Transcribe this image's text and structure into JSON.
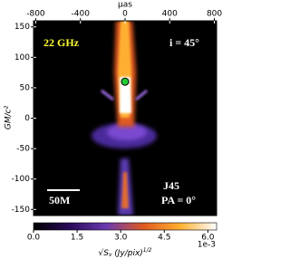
{
  "chart_data": {
    "type": "image",
    "x_label": "μas",
    "y_label": "GM/c²",
    "xlim": [
      -820,
      820
    ],
    "xticks": [
      -800,
      -400,
      0,
      400,
      800
    ],
    "ylim": [
      -160,
      160
    ],
    "yticks": [
      150,
      100,
      50,
      0,
      -50,
      -100,
      -150
    ],
    "annotations": [
      "22 GHz",
      "i = 45°",
      "J45",
      "PA = 0°",
      "50M"
    ],
    "marker": {
      "x": 0,
      "y": 60,
      "color": "#22cc33"
    },
    "colorbar": {
      "label": [
        "√S",
        "ν",
        " (Jy/pix)",
        "1/2"
      ],
      "lim": [
        0,
        6.3
      ],
      "ticks": [
        {
          "value": 0,
          "label": "0.0"
        },
        {
          "value": 1.5,
          "label": "1.5"
        },
        {
          "value": 3,
          "label": "3.0"
        },
        {
          "value": 4.5,
          "label": "4.5"
        },
        {
          "value": 6,
          "label": "6.0"
        }
      ],
      "offset_text": "1e-3"
    }
  }
}
